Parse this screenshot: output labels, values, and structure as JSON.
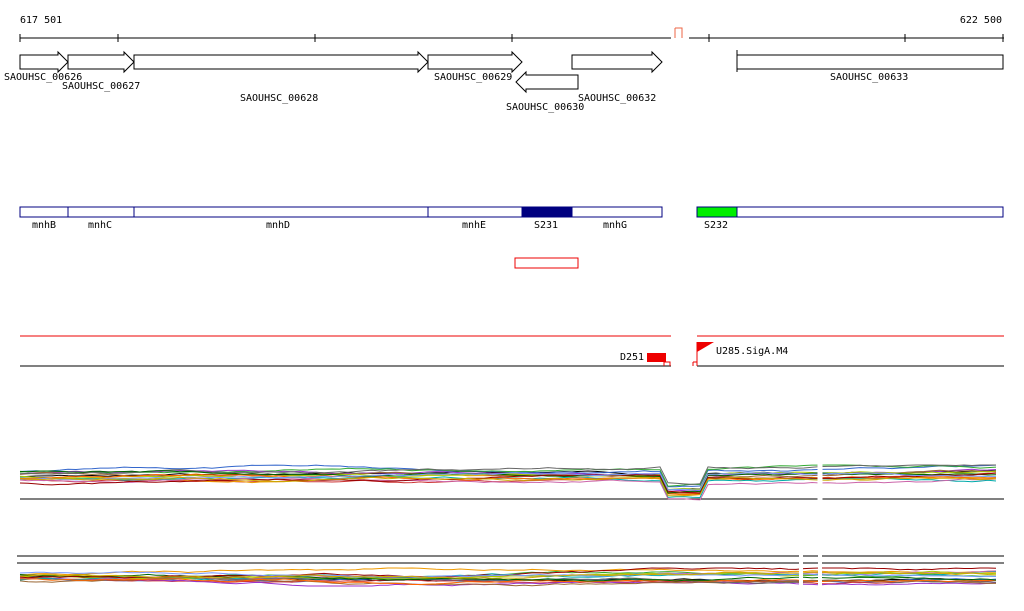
{
  "ruler": {
    "start_label": "617 501",
    "end_label": "622 500"
  },
  "genes": [
    {
      "label": "SAOUHSC_00626",
      "strand": "+"
    },
    {
      "label": "SAOUHSC_00627",
      "strand": "+"
    },
    {
      "label": "SAOUHSC_00628",
      "strand": "+"
    },
    {
      "label": "SAOUHSC_00629",
      "strand": "+"
    },
    {
      "label": "SAOUHSC_00630",
      "strand": "-"
    },
    {
      "label": "SAOUHSC_00632",
      "strand": "+"
    },
    {
      "label": "SAOUHSC_00633",
      "strand": "none"
    }
  ],
  "segments": [
    {
      "label": "mnhB",
      "fill": "#ffffff"
    },
    {
      "label": "mnhC",
      "fill": "#ffffff"
    },
    {
      "label": "mnhD",
      "fill": "#ffffff"
    },
    {
      "label": "mnhE",
      "fill": "#ffffff"
    },
    {
      "label": "S231",
      "fill": "#000080"
    },
    {
      "label": "mnhG",
      "fill": "#ffffff"
    },
    {
      "label": "S232",
      "fill": "#00ee00"
    }
  ],
  "features": {
    "d_label": "D251",
    "u_label": "U285.SigA.M4"
  },
  "colors": {
    "outline": "#000080",
    "accent": "#ee0000",
    "ruler_marker": "#ee6644",
    "trace_palette": [
      "#000000",
      "#3366cc",
      "#cc3333",
      "#33aa33",
      "#ee9900",
      "#9933cc",
      "#00aaaa",
      "#996633",
      "#cc66aa",
      "#666666",
      "#aacc00",
      "#ff6600",
      "#006600",
      "#990000",
      "#7799ff",
      "#ccaa00"
    ]
  }
}
